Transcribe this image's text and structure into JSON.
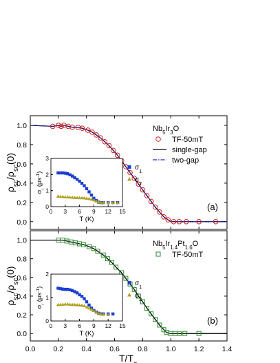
{
  "chart_data": [
    {
      "panel": "(a)",
      "type": "scatter",
      "ylabel": "ρsc/ρsc(0)",
      "xlim": [
        0.0,
        1.4
      ],
      "ylim": [
        -0.08,
        1.1
      ],
      "yticks": [
        "0.0",
        "0.2",
        "0.4",
        "0.6",
        "0.8",
        "1.0"
      ],
      "compound": "Nb5Ir3O",
      "legend": [
        "TF-50mT",
        "single-gap",
        "two-gap"
      ],
      "legend_position": "top-right",
      "colors": {
        "data": "#d42020",
        "single": "#000000",
        "two": "#2020d0"
      },
      "series": [
        {
          "name": "TF-50mT",
          "x": [
            0.16,
            0.2,
            0.22,
            0.24,
            0.27,
            0.3,
            0.34,
            0.37,
            0.41,
            0.44,
            0.47,
            0.5,
            0.53,
            0.56,
            0.59,
            0.62,
            0.65,
            0.68,
            0.71,
            0.74,
            0.77,
            0.8,
            0.83,
            0.86,
            0.89,
            0.92,
            0.95,
            0.98,
            1.02,
            1.06,
            1.11,
            1.2,
            1.32
          ],
          "y": [
            0.99,
            1.0,
            0.99,
            1.0,
            0.99,
            0.98,
            0.98,
            0.97,
            0.95,
            0.93,
            0.9,
            0.87,
            0.83,
            0.79,
            0.74,
            0.69,
            0.63,
            0.57,
            0.51,
            0.45,
            0.39,
            0.33,
            0.27,
            0.21,
            0.15,
            0.1,
            0.05,
            0.02,
            0.0,
            0.0,
            0.0,
            0.0,
            0.0
          ]
        }
      ],
      "inset": {
        "xlabel": "T (K)",
        "ylabel": "σi (μs-1)",
        "xlim": [
          0,
          15
        ],
        "ylim": [
          0,
          3
        ],
        "xticks": [
          "0",
          "3",
          "6",
          "9",
          "12",
          "15"
        ],
        "yticks": [
          "0",
          "1",
          "2",
          "3"
        ],
        "legend": [
          "σ1",
          "σ2"
        ],
        "series": [
          {
            "name": "σ1",
            "color": "#1a3fd0",
            "x": [
              1.5,
              2,
              2.5,
              3,
              3.5,
              4,
              4.5,
              5,
              5.5,
              6,
              6.5,
              7,
              7.5,
              8,
              8.5,
              9,
              9.5,
              10,
              10.5,
              11,
              12,
              13,
              14
            ],
            "y": [
              2.1,
              2.1,
              2.1,
              2.08,
              2.05,
              1.98,
              1.9,
              1.8,
              1.7,
              1.58,
              1.45,
              1.3,
              1.12,
              0.92,
              0.72,
              0.52,
              0.38,
              0.28,
              0.25,
              0.25,
              0.25,
              0.25,
              0.25
            ]
          },
          {
            "name": "σ2",
            "color": "#b0a020",
            "x": [
              1.5,
              2,
              2.5,
              3,
              3.5,
              4,
              4.5,
              5,
              5.5,
              6,
              6.5,
              7,
              7.5,
              8,
              8.5,
              9,
              9.5,
              10,
              10.5,
              11,
              12,
              13,
              14
            ],
            "y": [
              0.65,
              0.63,
              0.62,
              0.6,
              0.6,
              0.59,
              0.58,
              0.57,
              0.56,
              0.55,
              0.55,
              0.54,
              0.52,
              0.5,
              0.46,
              0.42,
              0.35,
              0.3,
              0.26,
              0.26,
              0.25,
              0.25,
              0.25
            ]
          }
        ]
      }
    },
    {
      "panel": "(b)",
      "type": "scatter",
      "xlabel": "T/Tc",
      "ylabel": "ρsc/ρsc(0)",
      "xlim": [
        0.0,
        1.4
      ],
      "ylim": [
        -0.08,
        1.1
      ],
      "xticks": [
        "0.0",
        "0.2",
        "0.4",
        "0.6",
        "0.8",
        "1.0",
        "1.2",
        "1.4"
      ],
      "yticks": [
        "0.0",
        "0.2",
        "0.4",
        "0.6",
        "0.8",
        "1.0"
      ],
      "compound": "Nb5Ir1.4Pt1.6O",
      "legend": [
        "TF-50mT"
      ],
      "legend_position": "top-right",
      "colors": {
        "data": "#2a8a2a",
        "fit": "#000000"
      },
      "series": [
        {
          "name": "TF-50mT",
          "x": [
            0.2,
            0.23,
            0.26,
            0.29,
            0.32,
            0.35,
            0.38,
            0.42,
            0.45,
            0.48,
            0.52,
            0.55,
            0.58,
            0.61,
            0.65,
            0.68,
            0.71,
            0.74,
            0.77,
            0.8,
            0.83,
            0.86,
            0.89,
            0.92,
            0.95,
            0.97,
            1.0,
            1.03,
            1.06,
            1.1,
            1.2
          ],
          "y": [
            1.0,
            1.0,
            0.99,
            0.98,
            0.97,
            0.96,
            0.95,
            0.93,
            0.91,
            0.88,
            0.84,
            0.8,
            0.76,
            0.71,
            0.65,
            0.59,
            0.53,
            0.47,
            0.4,
            0.34,
            0.27,
            0.21,
            0.15,
            0.09,
            0.04,
            0.01,
            0.0,
            0.0,
            0.0,
            0.0,
            0.0
          ]
        }
      ],
      "inset": {
        "xlabel": "T (K)",
        "ylabel": "σi (μs-1)",
        "xlim": [
          0,
          15
        ],
        "ylim": [
          0,
          2
        ],
        "xticks": [
          "0",
          "3",
          "6",
          "9",
          "12",
          "15"
        ],
        "yticks": [
          "0",
          "1",
          "2"
        ],
        "legend": [
          "σ1",
          "σ2"
        ],
        "series": [
          {
            "name": "σ1",
            "color": "#1a3fd0",
            "x": [
              1.5,
              2,
              2.5,
              3,
              3.5,
              4,
              4.5,
              5,
              5.5,
              6,
              6.5,
              7,
              7.5,
              8,
              8.5,
              9,
              9.5,
              10,
              10.5,
              11,
              12,
              13
            ],
            "y": [
              1.4,
              1.38,
              1.36,
              1.35,
              1.35,
              1.33,
              1.3,
              1.25,
              1.2,
              1.12,
              1.05,
              0.95,
              0.82,
              0.68,
              0.55,
              0.45,
              0.38,
              0.33,
              0.3,
              0.3,
              0.3,
              0.3
            ]
          },
          {
            "name": "σ2",
            "color": "#b0a020",
            "x": [
              1.5,
              2,
              2.5,
              3,
              3.5,
              4,
              4.5,
              5,
              5.5,
              6,
              6.5,
              7,
              7.5,
              8,
              8.5,
              9,
              9.5,
              10,
              10.5,
              11,
              12
            ],
            "y": [
              0.7,
              0.7,
              0.71,
              0.72,
              0.72,
              0.71,
              0.7,
              0.7,
              0.69,
              0.68,
              0.67,
              0.65,
              0.6,
              0.55,
              0.5,
              0.44,
              0.38,
              0.33,
              0.3,
              0.28,
              0.27
            ]
          }
        ]
      }
    }
  ]
}
